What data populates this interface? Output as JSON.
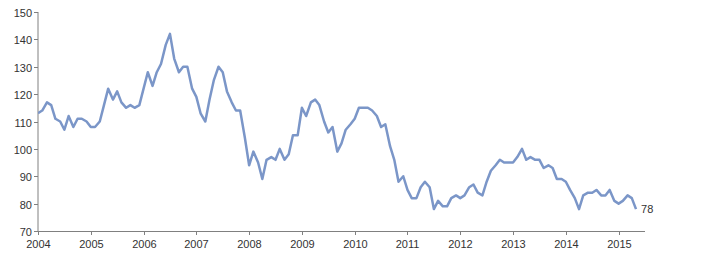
{
  "chart_data": {
    "type": "line",
    "x": [
      2004,
      2004.08,
      2004.17,
      2004.25,
      2004.33,
      2004.42,
      2004.5,
      2004.58,
      2004.67,
      2004.75,
      2004.83,
      2004.92,
      2005,
      2005.08,
      2005.17,
      2005.25,
      2005.33,
      2005.42,
      2005.5,
      2005.58,
      2005.67,
      2005.75,
      2005.83,
      2005.92,
      2006,
      2006.08,
      2006.17,
      2006.25,
      2006.33,
      2006.42,
      2006.5,
      2006.58,
      2006.67,
      2006.75,
      2006.83,
      2006.92,
      2007,
      2007.08,
      2007.17,
      2007.25,
      2007.33,
      2007.42,
      2007.5,
      2007.58,
      2007.67,
      2007.75,
      2007.83,
      2007.92,
      2008,
      2008.08,
      2008.17,
      2008.25,
      2008.33,
      2008.42,
      2008.5,
      2008.58,
      2008.67,
      2008.75,
      2008.83,
      2008.92,
      2009,
      2009.08,
      2009.17,
      2009.25,
      2009.33,
      2009.42,
      2009.5,
      2009.58,
      2009.67,
      2009.75,
      2009.83,
      2009.92,
      2010,
      2010.08,
      2010.17,
      2010.25,
      2010.33,
      2010.42,
      2010.5,
      2010.58,
      2010.67,
      2010.75,
      2010.83,
      2010.92,
      2011,
      2011.08,
      2011.17,
      2011.25,
      2011.33,
      2011.42,
      2011.5,
      2011.58,
      2011.67,
      2011.75,
      2011.83,
      2011.92,
      2012,
      2012.08,
      2012.17,
      2012.25,
      2012.33,
      2012.42,
      2012.5,
      2012.58,
      2012.67,
      2012.75,
      2012.83,
      2012.92,
      2013,
      2013.08,
      2013.17,
      2013.25,
      2013.33,
      2013.42,
      2013.5,
      2013.58,
      2013.67,
      2013.75,
      2013.83,
      2013.92,
      2014,
      2014.08,
      2014.17,
      2014.25,
      2014.33,
      2014.42,
      2014.5,
      2014.58,
      2014.67,
      2014.75,
      2014.83,
      2014.92,
      2015,
      2015.08,
      2015.17,
      2015.25,
      2015.33
    ],
    "values": [
      113,
      114,
      117,
      116,
      111,
      110,
      107,
      112,
      108,
      111,
      111,
      110,
      108,
      108,
      110,
      116,
      122,
      118,
      121,
      117,
      115,
      116,
      115,
      116,
      122,
      128,
      123,
      128,
      131,
      138,
      142,
      133,
      128,
      130,
      130,
      122,
      119,
      113,
      110,
      118,
      125,
      130,
      128,
      121,
      117,
      114,
      114,
      104,
      94,
      99,
      95,
      89,
      96,
      97,
      96,
      100,
      96,
      98,
      105,
      105,
      115,
      112,
      117,
      118,
      116,
      110,
      106,
      108,
      99,
      102,
      107,
      109,
      111,
      115,
      115,
      115,
      114,
      112,
      108,
      109,
      101,
      96,
      88,
      90,
      85,
      82,
      82,
      86,
      88,
      86,
      78,
      81,
      79,
      79,
      82,
      83,
      82,
      83,
      86,
      87,
      84,
      83,
      88,
      92,
      94,
      96,
      95,
      95,
      95,
      97,
      100,
      96,
      97,
      96,
      96,
      93,
      94,
      93,
      89,
      89,
      88,
      85,
      82,
      78,
      83,
      84,
      84,
      85,
      83,
      83,
      85,
      81,
      80,
      81,
      83,
      82,
      78
    ],
    "color": "#7b96c8",
    "xlim": [
      2004,
      2015.5
    ],
    "xticks": [
      2004,
      2005,
      2006,
      2007,
      2008,
      2009,
      2010,
      2011,
      2012,
      2013,
      2014,
      2015
    ],
    "ylim": [
      70,
      150
    ],
    "yticks": [
      70,
      80,
      90,
      100,
      110,
      120,
      130,
      140,
      150
    ],
    "grid": false,
    "annotations": [
      {
        "x": 2015.33,
        "y": 78,
        "text": "78"
      }
    ]
  }
}
